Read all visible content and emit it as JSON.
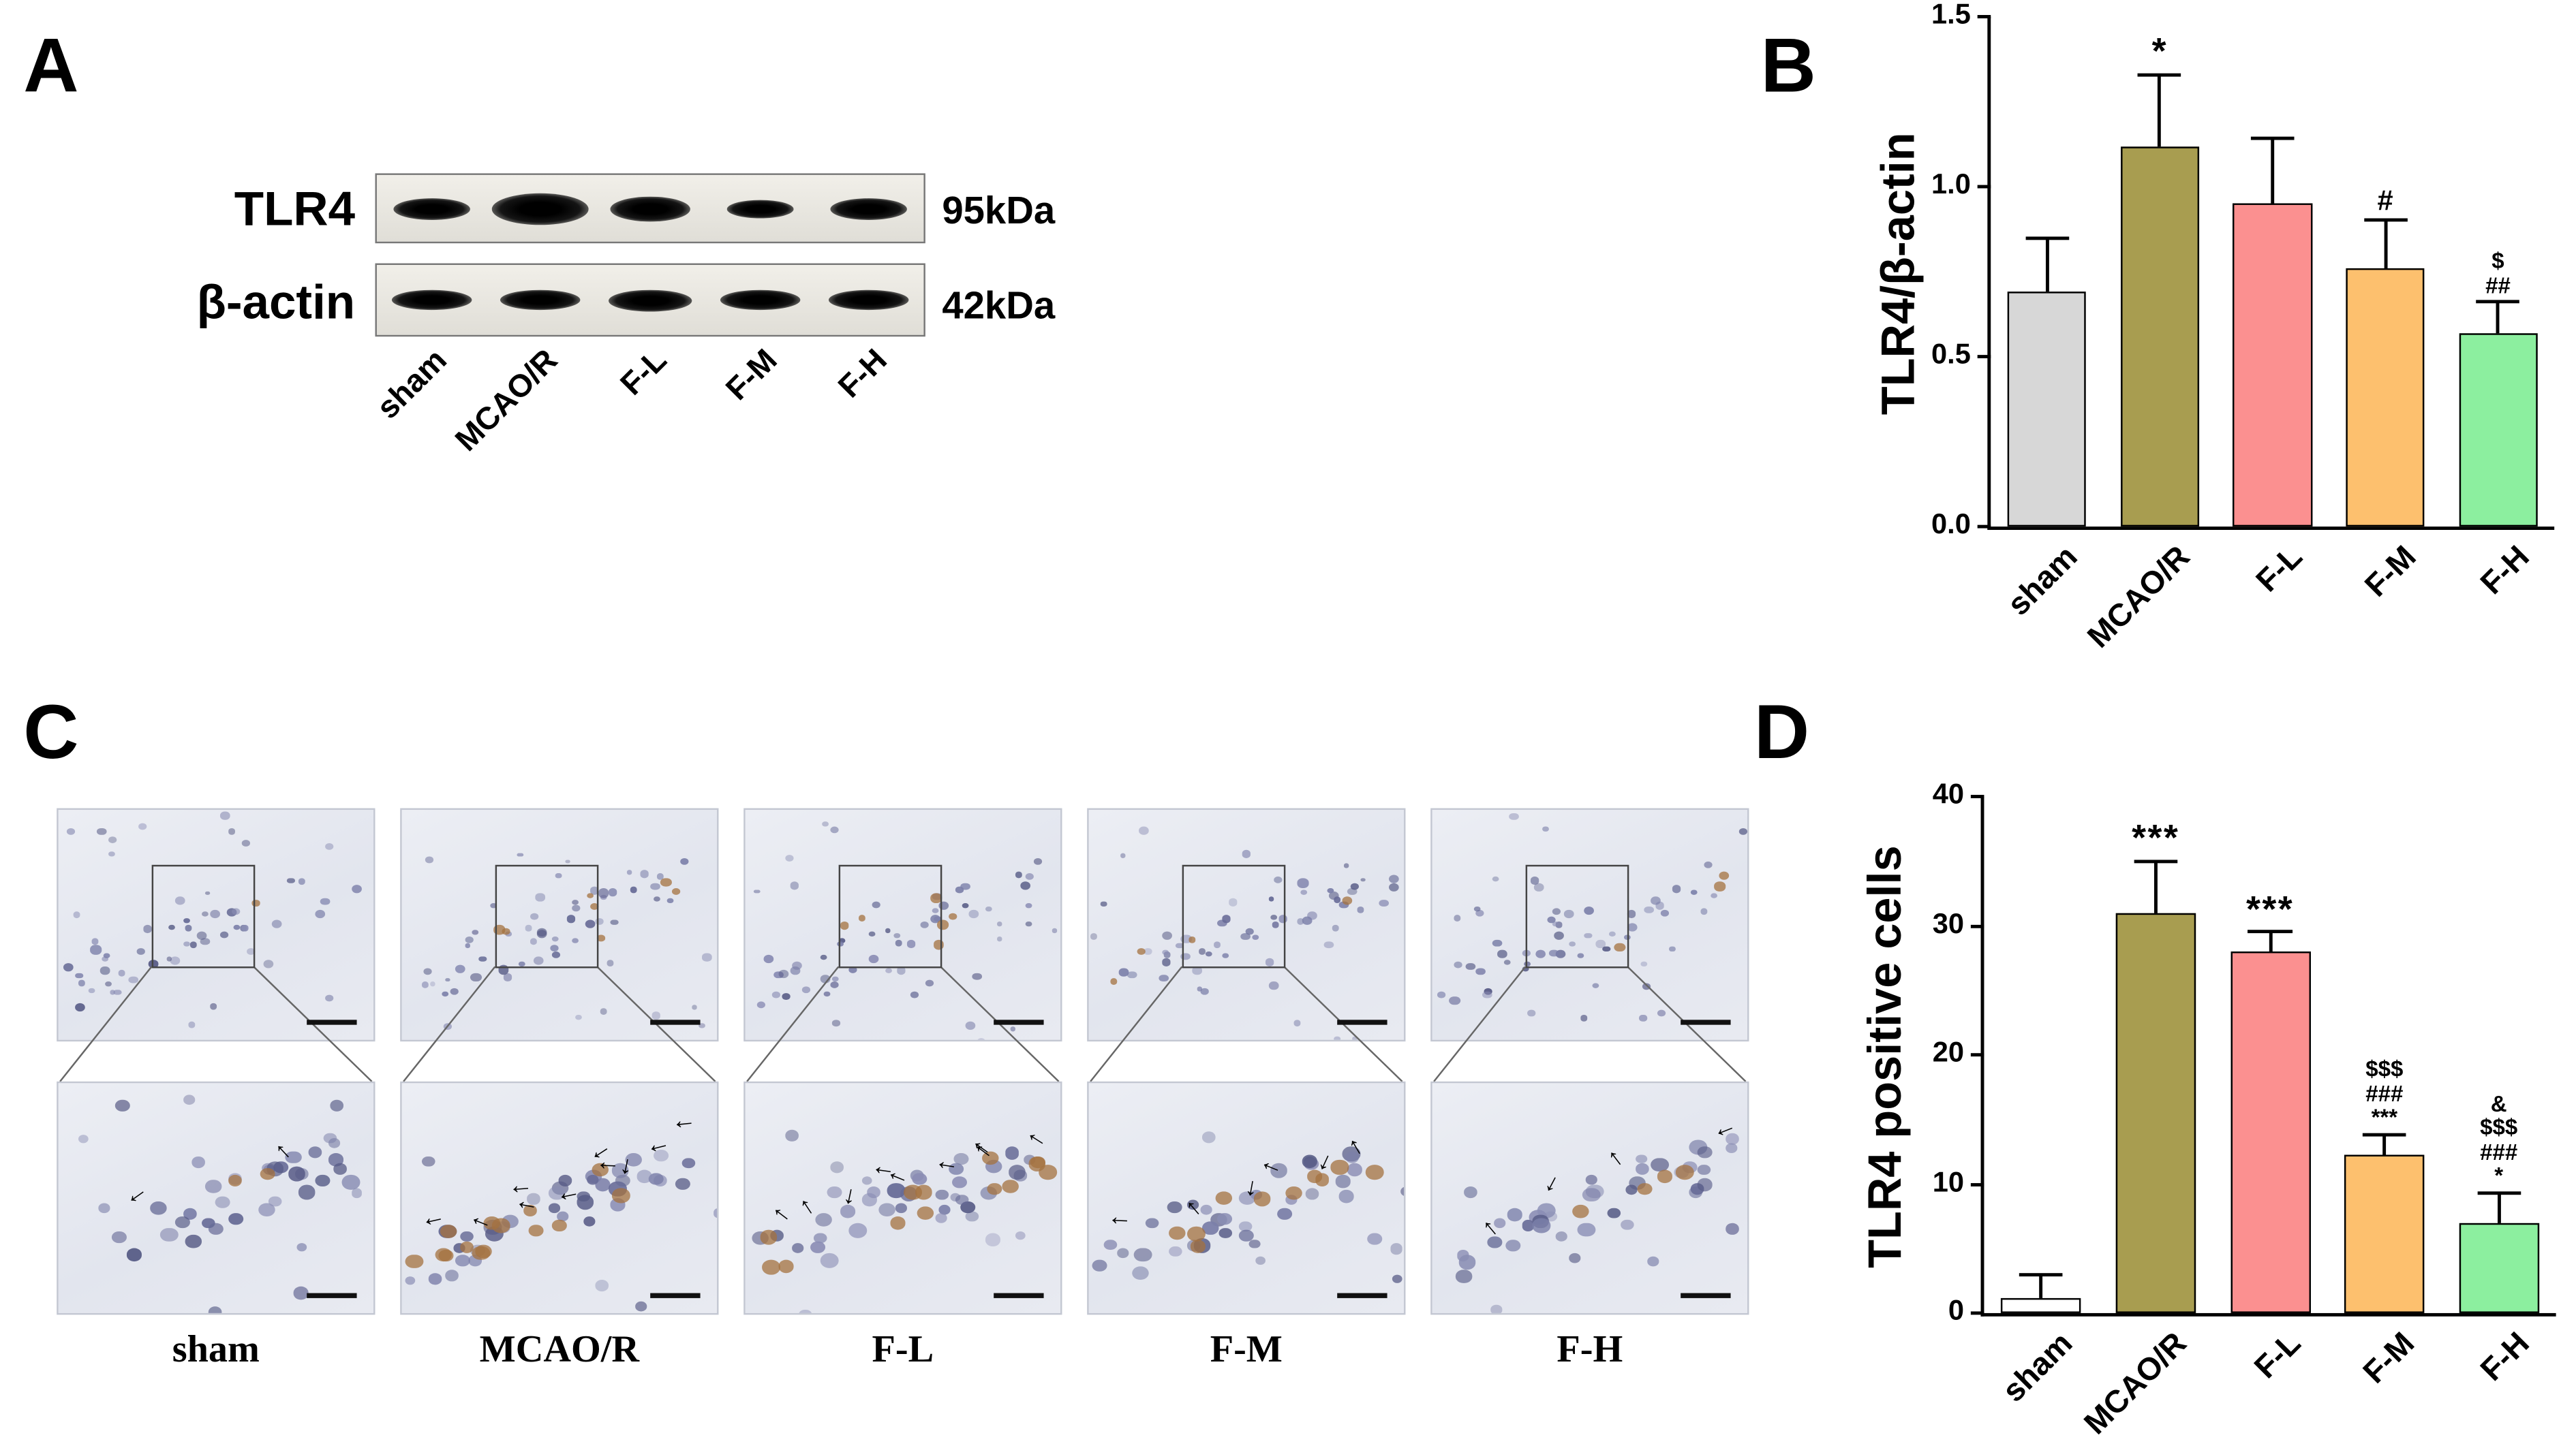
{
  "figure": {
    "panel_a": {
      "label": "A",
      "bands": [
        {
          "protein": "TLR4",
          "weight": "95kDa"
        },
        {
          "protein": "β-actin",
          "weight": "42kDa"
        }
      ],
      "lanes": [
        "sham",
        "MCAO/R",
        "F-L",
        "F-M",
        "F-H"
      ]
    },
    "panel_b": {
      "label": "B"
    },
    "panel_c": {
      "label": "C",
      "groups": [
        {
          "label": "sham",
          "arrows": 2
        },
        {
          "label": "MCAO/R",
          "arrows": 10
        },
        {
          "label": "F-L",
          "arrows": 9
        },
        {
          "label": "F-M",
          "arrows": 6
        },
        {
          "label": "F-H",
          "arrows": 4
        }
      ]
    },
    "panel_d": {
      "label": "D"
    }
  },
  "chart_data": [
    {
      "type": "bar",
      "panel": "B",
      "title": "",
      "ylabel": "TLR4/β-actin",
      "xlabel": "",
      "categories": [
        "sham",
        "MCAO/R",
        "F-L",
        "F-M",
        "F-H"
      ],
      "values": [
        0.69,
        1.12,
        0.95,
        0.76,
        0.57
      ],
      "errors": [
        0.16,
        0.21,
        0.19,
        0.14,
        0.09
      ],
      "annotations": [
        [],
        [
          "*"
        ],
        [],
        [
          "#"
        ],
        [
          "$",
          "##"
        ]
      ],
      "ylim": [
        0,
        1.5
      ],
      "yticks": [
        "0.0",
        "0.5",
        "1.0",
        "1.5"
      ],
      "bar_colors": [
        "#d7d7d7",
        "#a89d50",
        "#fb9090",
        "#fdc06e",
        "#8cef9f"
      ],
      "bar_border": "#000000",
      "grid": false,
      "legend": "none"
    },
    {
      "type": "bar",
      "panel": "D",
      "title": "",
      "ylabel": "TLR4 positive cells",
      "xlabel": "",
      "categories": [
        "sham",
        "MCAO/R",
        "F-L",
        "F-M",
        "F-H"
      ],
      "values": [
        1.2,
        31,
        28,
        12.2,
        7
      ],
      "errors": [
        1.8,
        4,
        1.5,
        1.6,
        2.3
      ],
      "annotations": [
        [],
        [
          "***"
        ],
        [
          "***"
        ],
        [
          "$$$",
          "###",
          "***"
        ],
        [
          "&",
          "$$$",
          "###",
          "*"
        ]
      ],
      "ylim": [
        0,
        40
      ],
      "yticks": [
        "0",
        "10",
        "20",
        "30",
        "40"
      ],
      "bar_colors": [
        "#ffffff",
        "#a89d50",
        "#fb9090",
        "#fdc06e",
        "#8cef9f"
      ],
      "bar_border": "#000000",
      "grid": false,
      "legend": "none"
    }
  ]
}
